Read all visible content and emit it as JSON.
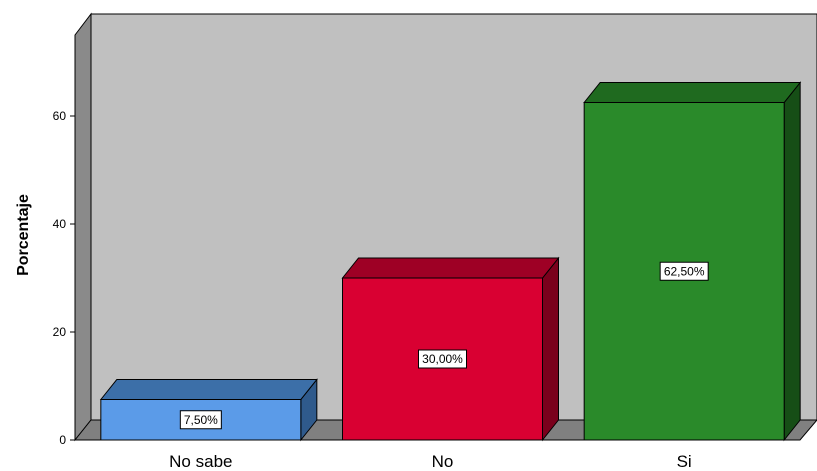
{
  "chart_data": {
    "type": "bar",
    "ylabel": "Porcentaje",
    "ylim": [
      0,
      75
    ],
    "yticks": [
      0,
      20,
      40,
      60
    ],
    "grid": false,
    "categories": [
      "No sabe",
      "No",
      "Si"
    ],
    "values": [
      7.5,
      30.0,
      62.5
    ],
    "data_labels": [
      "7,50%",
      "30,00%",
      "62,50%"
    ],
    "colors": {
      "bars": [
        "#5B9BE8",
        "#D90032",
        "#2A8A2A"
      ],
      "bars_top": [
        "#3C6FA8",
        "#9E0025",
        "#1F6A1F"
      ],
      "bars_side": [
        "#2F5A8C",
        "#7A001C",
        "#164E16"
      ],
      "back_wall": "#C0C0C0",
      "floor": "#808080",
      "left_wall": "#8A8A8A"
    }
  }
}
